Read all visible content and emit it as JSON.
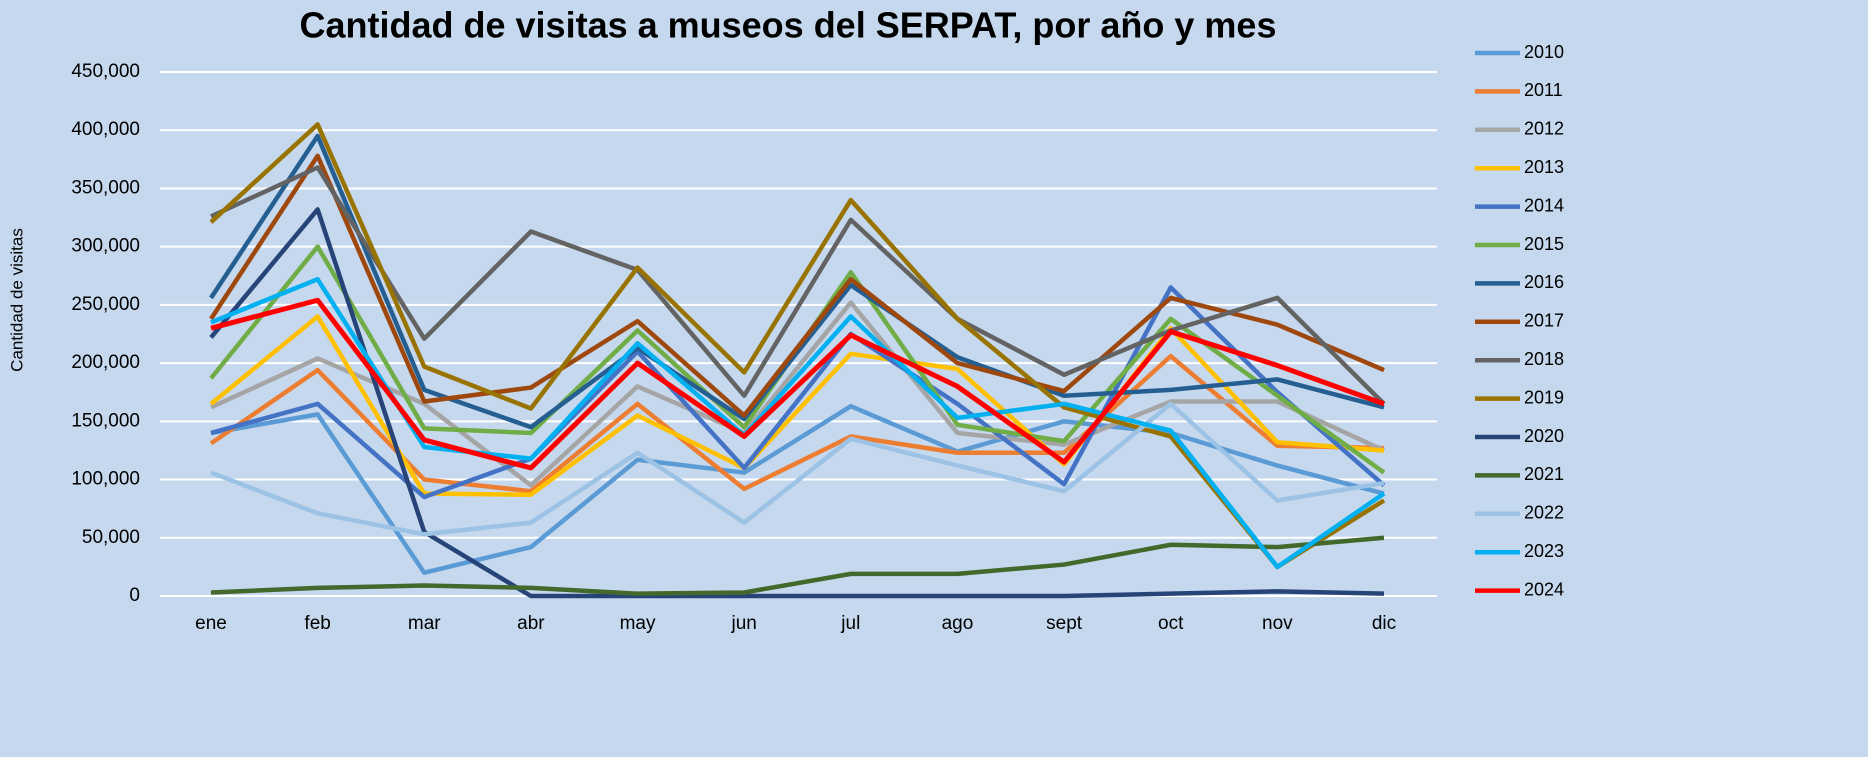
{
  "chart_data": {
    "type": "line",
    "title": "Cantidad de visitas a museos del SERPAT, por año y mes",
    "y_label": "Cantidad de visitas",
    "categories": [
      "ene",
      "feb",
      "mar",
      "abr",
      "may",
      "jun",
      "jul",
      "ago",
      "sept",
      "oct",
      "nov",
      "dic"
    ],
    "ylim": [
      0,
      450000
    ],
    "yticks": [
      0,
      {
        "value": 50000,
        "label": "50,000"
      },
      {
        "value": 100000,
        "label": "100,000"
      },
      {
        "value": 150000,
        "label": "150,000"
      },
      {
        "value": 200000,
        "label": "200,000"
      },
      {
        "value": 250000,
        "label": "250,000"
      },
      {
        "value": 300000,
        "label": "300,000"
      },
      {
        "value": 350000,
        "label": "350,000"
      },
      {
        "value": 400000,
        "label": "400,000"
      },
      {
        "value": 450000,
        "label": "450,000"
      }
    ],
    "grid": true,
    "legend": "right",
    "series": [
      {
        "name": "2010",
        "color": "#5b9bd5",
        "values": [
          140000,
          156000,
          20000,
          42000,
          117000,
          106000,
          163000,
          124000,
          150000,
          140000,
          112000,
          88000
        ]
      },
      {
        "name": "2011",
        "color": "#ed7d31",
        "values": [
          131000,
          194000,
          100000,
          90000,
          165000,
          92000,
          137000,
          123000,
          123000,
          206000,
          129000,
          127000
        ]
      },
      {
        "name": "2012",
        "color": "#a5a5a5",
        "values": [
          162000,
          204000,
          165000,
          95000,
          180000,
          140000,
          252000,
          140000,
          130000,
          167000,
          167000,
          125000
        ]
      },
      {
        "name": "2013",
        "color": "#ffc000",
        "values": [
          165000,
          240000,
          88000,
          87000,
          155000,
          110000,
          208000,
          195000,
          113000,
          230000,
          132000,
          125000
        ]
      },
      {
        "name": "2014",
        "color": "#4472c4",
        "values": [
          140000,
          165000,
          85000,
          118000,
          210000,
          110000,
          225000,
          165000,
          96000,
          265000,
          175000,
          95000
        ]
      },
      {
        "name": "2015",
        "color": "#70ad47",
        "values": [
          187000,
          300000,
          144000,
          140000,
          228000,
          145000,
          278000,
          147000,
          133000,
          238000,
          172000,
          106000
        ]
      },
      {
        "name": "2016",
        "color": "#255e91",
        "values": [
          256000,
          395000,
          177000,
          145000,
          213000,
          152000,
          267000,
          205000,
          172000,
          177000,
          186000,
          162000
        ]
      },
      {
        "name": "2017",
        "color": "#9e480e",
        "values": [
          238000,
          378000,
          167000,
          179000,
          236000,
          155000,
          272000,
          200000,
          176000,
          256000,
          233000,
          194000
        ]
      },
      {
        "name": "2018",
        "color": "#636363",
        "values": [
          326000,
          368000,
          221000,
          313000,
          280000,
          172000,
          323000,
          238000,
          190000,
          228000,
          256000,
          165000
        ]
      },
      {
        "name": "2019",
        "color": "#997300",
        "values": [
          321000,
          405000,
          197000,
          161000,
          282000,
          192000,
          340000,
          238000,
          162000,
          137000,
          25000,
          82000
        ]
      },
      {
        "name": "2020",
        "color": "#264478",
        "values": [
          222000,
          332000,
          55000,
          0,
          0,
          0,
          0,
          0,
          0,
          2000,
          4000,
          2000
        ]
      },
      {
        "name": "2021",
        "color": "#43682b",
        "values": [
          3000,
          7000,
          9000,
          7000,
          2000,
          3000,
          19000,
          19000,
          27000,
          44000,
          42000,
          50000
        ]
      },
      {
        "name": "2022",
        "color": "#9cc2e5",
        "values": [
          106000,
          71000,
          53000,
          63000,
          123000,
          63000,
          135000,
          112000,
          90000,
          165000,
          82000,
          97000
        ]
      },
      {
        "name": "2023",
        "color": "#00b0f0",
        "values": [
          235000,
          272000,
          128000,
          118000,
          217000,
          138000,
          240000,
          153000,
          165000,
          142000,
          25000,
          88000
        ]
      },
      {
        "name": "2024",
        "color": "#ff0000",
        "values": [
          230000,
          254000,
          134000,
          110000,
          200000,
          137000,
          224000,
          180000,
          115000,
          227000,
          198000,
          165000
        ]
      }
    ]
  }
}
